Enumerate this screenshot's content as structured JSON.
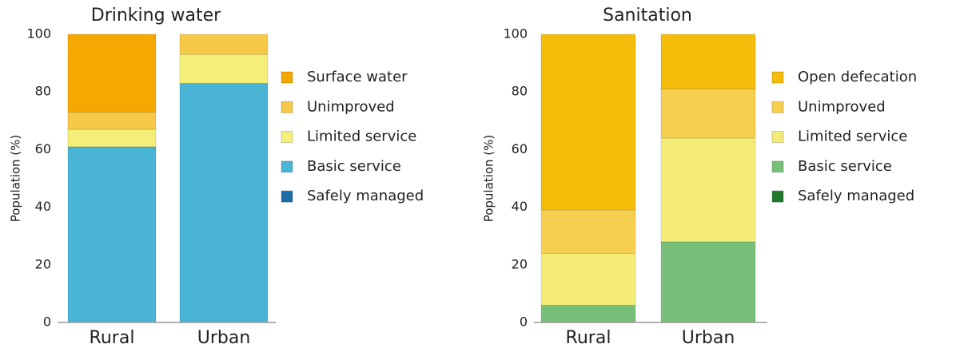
{
  "chart_data": [
    {
      "type": "bar",
      "stacked": true,
      "title": "Drinking water",
      "y_label": "Population (%)",
      "categories": [
        "Rural",
        "Urban"
      ],
      "ylim": [
        0,
        100
      ],
      "yticks": [
        0,
        20,
        40,
        60,
        80,
        100
      ],
      "series": [
        {
          "name": "Safely managed",
          "color": "#1a6ea8",
          "values": [
            0,
            0
          ]
        },
        {
          "name": "Basic service",
          "color": "#4ab4d4",
          "values": [
            61,
            83
          ]
        },
        {
          "name": "Limited service",
          "color": "#f5ef7a",
          "values": [
            6,
            10
          ]
        },
        {
          "name": "Unimproved",
          "color": "#f7c948",
          "values": [
            6,
            7
          ]
        },
        {
          "name": "Surface water",
          "color": "#f5a800",
          "values": [
            27,
            0
          ]
        }
      ]
    },
    {
      "type": "bar",
      "stacked": true,
      "title": "Sanitation",
      "y_label": "Population (%)",
      "categories": [
        "Rural",
        "Urban"
      ],
      "ylim": [
        0,
        100
      ],
      "yticks": [
        0,
        20,
        40,
        60,
        80,
        100
      ],
      "series": [
        {
          "name": "Safely managed",
          "color": "#1f7a2e",
          "values": [
            0,
            0
          ]
        },
        {
          "name": "Basic service",
          "color": "#78c07a",
          "values": [
            6,
            28
          ]
        },
        {
          "name": "Limited service",
          "color": "#f5ec78",
          "values": [
            18,
            36
          ]
        },
        {
          "name": "Unimproved",
          "color": "#f7d050",
          "values": [
            15,
            17
          ]
        },
        {
          "name": "Open defecation",
          "color": "#f5bc0a",
          "values": [
            61,
            19
          ]
        }
      ]
    }
  ]
}
